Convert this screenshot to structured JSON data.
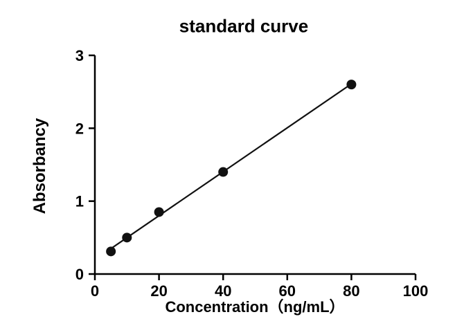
{
  "chart_data": {
    "type": "scatter",
    "title": "standard curve",
    "xlabel": "Concentration（ng/mL）",
    "ylabel": "Absorbancy",
    "x": [
      5,
      10,
      20,
      40,
      80
    ],
    "y": [
      0.31,
      0.5,
      0.85,
      1.4,
      2.6
    ],
    "xlim": [
      0,
      100
    ],
    "ylim": [
      0,
      3
    ],
    "x_ticks": [
      0,
      20,
      40,
      60,
      80,
      100
    ],
    "y_ticks": [
      0,
      1,
      2,
      3
    ],
    "trendline": true,
    "grid": false,
    "legend": "none",
    "marker_color": "#111111",
    "line_color": "#111111",
    "axis_color": "#000000"
  }
}
